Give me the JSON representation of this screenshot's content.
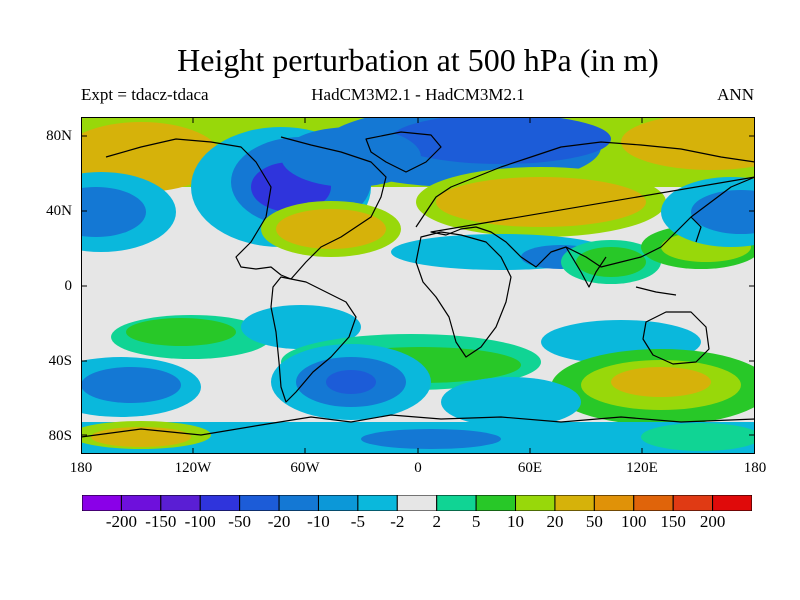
{
  "title": "Height perturbation at 500 hPa (in m)",
  "subtitle_left": "Expt = tdacz-tdaca",
  "subtitle_center": "HadCM3M2.1 - HadCM3M2.1",
  "subtitle_right": "ANN",
  "lat_ticks": [
    "80N",
    "40N",
    "0",
    "40S",
    "80S"
  ],
  "lon_ticks": [
    "180",
    "120W",
    "60W",
    "0",
    "60E",
    "120E",
    "180"
  ],
  "colorbar": {
    "colors": [
      "#8a00e8",
      "#6e10dc",
      "#5a1ed4",
      "#2f34dc",
      "#1c5cd8",
      "#1478d4",
      "#0c98d8",
      "#0ab8dc",
      "#e6e6e6",
      "#10d494",
      "#28c828",
      "#98d80a",
      "#d6b20a",
      "#e09208",
      "#e0640a",
      "#e03a14",
      "#e00a0a"
    ],
    "labels": [
      "-200",
      "-150",
      "-100",
      "-50",
      "-20",
      "-10",
      "-5",
      "-2",
      "2",
      "5",
      "10",
      "20",
      "50",
      "100",
      "150",
      "200"
    ]
  }
}
